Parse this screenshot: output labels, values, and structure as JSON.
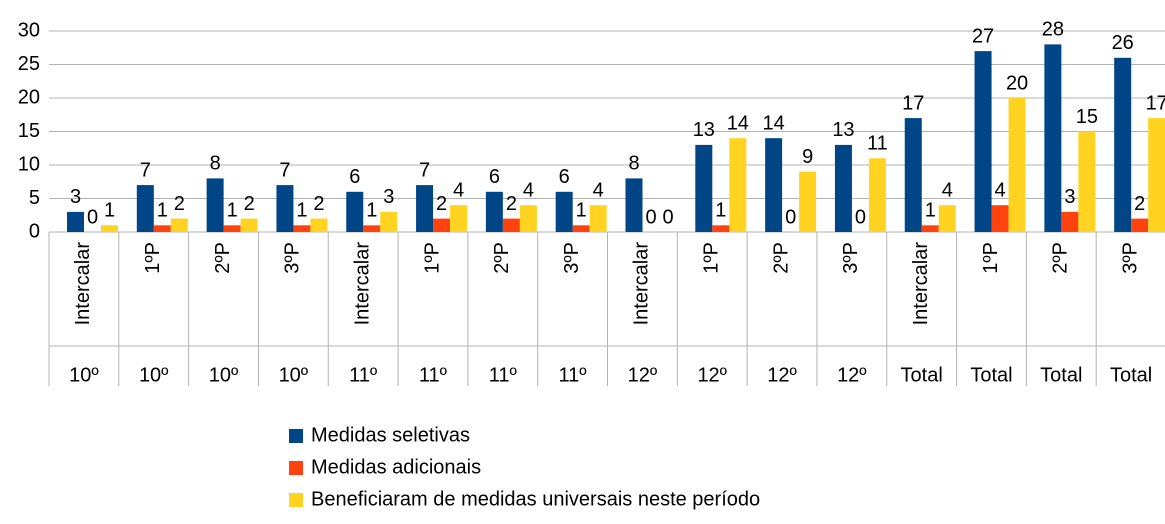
{
  "chart_data": {
    "type": "bar",
    "categories": [
      "Intercalar",
      "1ºP",
      "2ºP",
      "3ºP",
      "Intercalar",
      "1ºP",
      "2ºP",
      "3ºP",
      "Intercalar",
      "1ºP",
      "2ºP",
      "3ºP",
      "Intercalar",
      "1ºP",
      "2ºP",
      "3ºP"
    ],
    "category_groups": [
      "10º",
      "10º",
      "10º",
      "10º",
      "11º",
      "11º",
      "11º",
      "11º",
      "12º",
      "12º",
      "12º",
      "12º",
      "Total",
      "Total",
      "Total",
      "Total"
    ],
    "series": [
      {
        "name": "Medidas seletivas",
        "color": "#004586",
        "values": [
          3,
          7,
          8,
          7,
          6,
          7,
          6,
          6,
          8,
          13,
          14,
          13,
          17,
          27,
          28,
          26
        ]
      },
      {
        "name": "Medidas adicionais",
        "color": "#ff420e",
        "values": [
          0,
          1,
          1,
          1,
          1,
          2,
          2,
          1,
          0,
          1,
          0,
          0,
          1,
          4,
          3,
          2
        ]
      },
      {
        "name": "Beneficiaram de medidas universais neste período",
        "color": "#ffd320",
        "values": [
          1,
          2,
          2,
          2,
          3,
          4,
          4,
          4,
          0,
          14,
          9,
          11,
          4,
          20,
          15,
          17
        ]
      }
    ],
    "ylim": [
      0,
      30
    ],
    "yticks": [
      0,
      5,
      10,
      15,
      20,
      25,
      30
    ],
    "grid": true,
    "legend": "bottom"
  }
}
